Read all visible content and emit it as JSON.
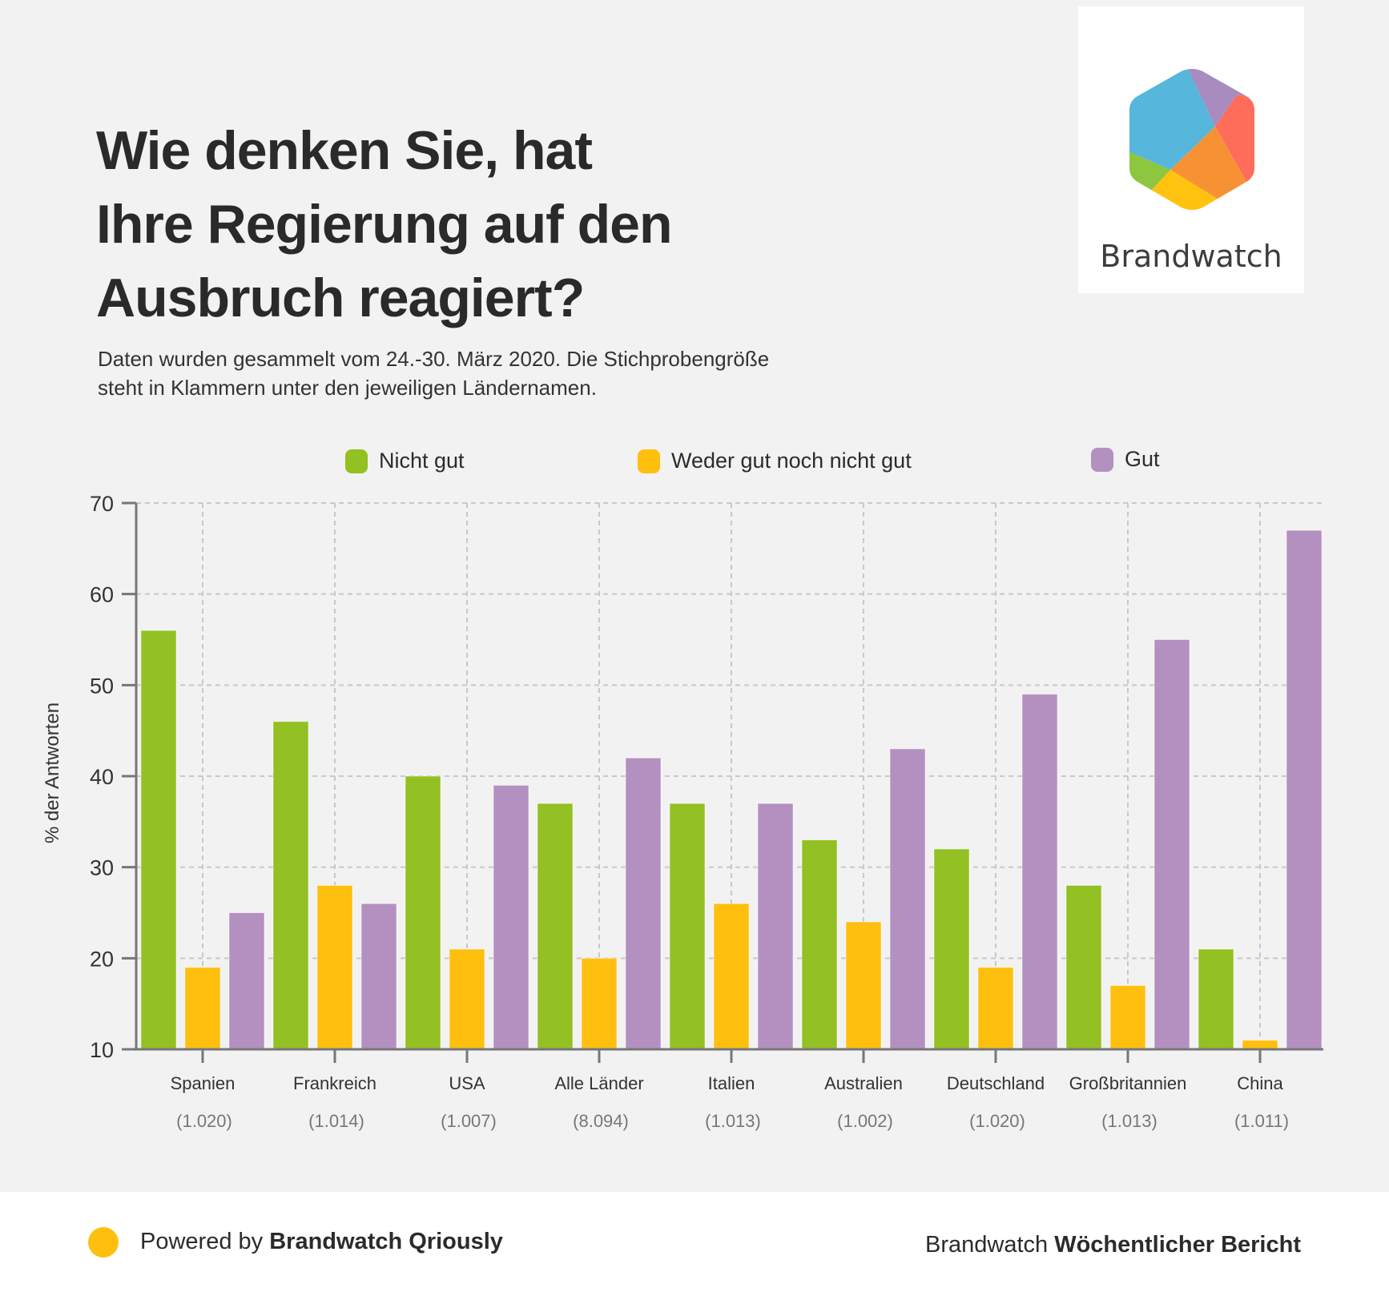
{
  "header": {
    "title_lines": [
      "Wie denken Sie, hat",
      "Ihre Regierung auf den",
      "Ausbruch reagiert?"
    ],
    "subtitle_lines": [
      "Daten wurden gesammelt vom 24.-30. März 2020. Die Stichprobengröße",
      "steht in Klammern unter den jeweiligen Ländernamen."
    ]
  },
  "logo": {
    "text": "Brandwatch",
    "icon": "brandwatch-hexagon-logo",
    "colors": {
      "blue": "#56b6dc",
      "purple": "#a88bbf",
      "red": "#fe6d5a",
      "orange": "#f79234",
      "yellow": "#ffc20e",
      "green": "#8dc63f"
    }
  },
  "chart_data": {
    "type": "bar",
    "title": "Wie denken Sie, hat Ihre Regierung auf den Ausbruch reagiert?",
    "xlabel": "",
    "ylabel": "% der Antworten",
    "ylim": [
      10,
      70
    ],
    "yticks": [
      10,
      20,
      30,
      40,
      50,
      60,
      70
    ],
    "grid": true,
    "legend_position": "top-center",
    "categories": [
      "Spanien",
      "Frankreich",
      "USA",
      "Alle Länder",
      "Italien",
      "Australien",
      "Deutschland",
      "Großbritannien",
      "China"
    ],
    "sample_sizes": [
      "(1.020)",
      "(1.014)",
      "(1.007)",
      "(8.094)",
      "(1.013)",
      "(1.002)",
      "(1.020)",
      "(1.013)",
      "(1.011)"
    ],
    "series": [
      {
        "name": "Nicht gut",
        "color": "#93c022",
        "values": [
          56,
          46,
          40,
          37,
          37,
          33,
          32,
          28,
          21
        ]
      },
      {
        "name": "Weder gut noch nicht gut",
        "color": "#ffbf0f",
        "values": [
          19,
          28,
          21,
          20,
          26,
          24,
          19,
          17,
          11
        ]
      },
      {
        "name": "Gut",
        "color": "#b490c1",
        "values": [
          25,
          26,
          39,
          42,
          37,
          43,
          49,
          55,
          67
        ]
      }
    ]
  },
  "footer": {
    "powered_prefix": "Powered by",
    "powered_brand": "Brandwatch Qriously",
    "report_prefix": "Brandwatch",
    "report_name": "Wöchentlicher Bericht",
    "dot_color": "#ffbf0f"
  }
}
